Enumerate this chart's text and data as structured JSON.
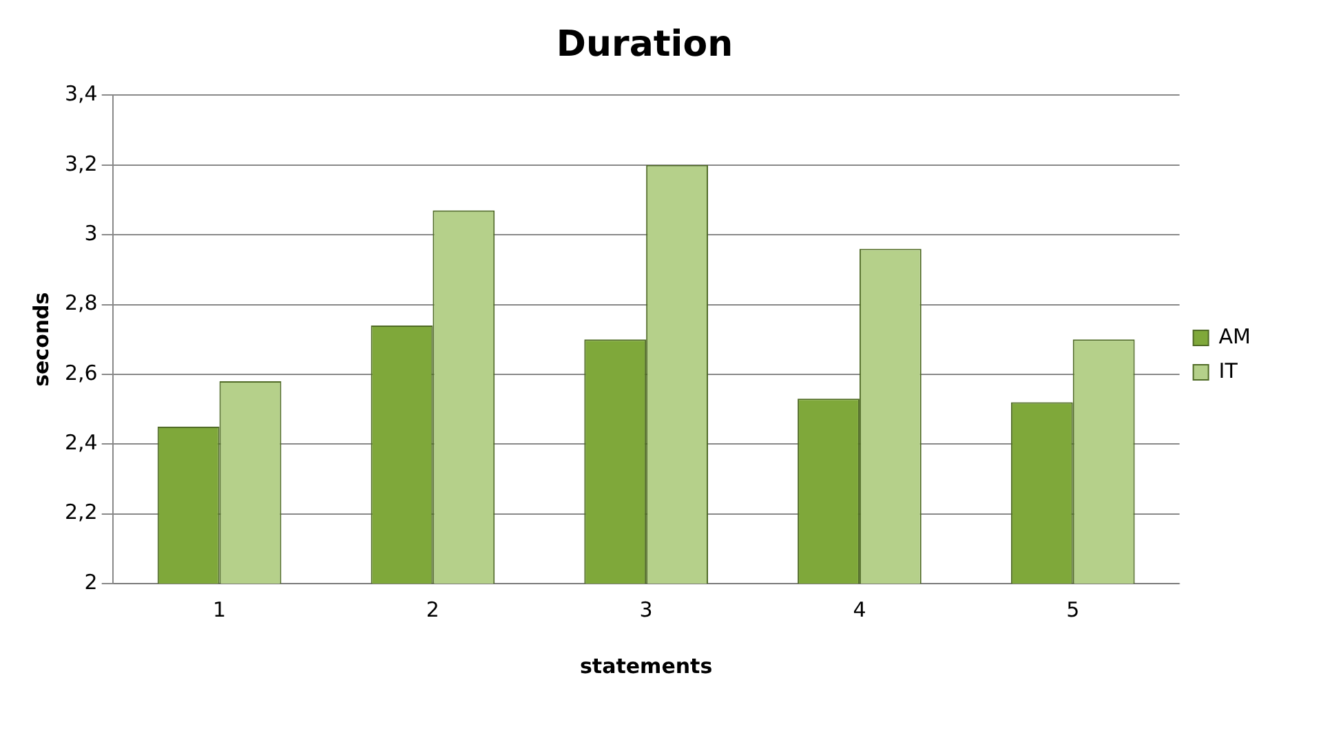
{
  "chart_data": {
    "type": "bar",
    "title": "Duration",
    "xlabel": "statements",
    "ylabel": "seconds",
    "categories": [
      "1",
      "2",
      "3",
      "4",
      "5"
    ],
    "series": [
      {
        "name": "AM",
        "color": "#7fa83a",
        "values": [
          2.45,
          2.74,
          2.7,
          2.53,
          2.52
        ]
      },
      {
        "name": "IT",
        "color": "#b5d08a",
        "values": [
          2.58,
          3.07,
          3.2,
          2.96,
          2.7
        ]
      }
    ],
    "ylim": [
      2,
      3.4
    ],
    "yticks": [
      2,
      {
        "value": 2.2,
        "label": "2,2"
      },
      {
        "value": 2.4,
        "label": "2,4"
      },
      {
        "value": 2.6,
        "label": "2,6"
      },
      {
        "value": 2.8,
        "label": "2,8"
      },
      3,
      {
        "value": 3.2,
        "label": "3,2"
      },
      {
        "value": 3.4,
        "label": "3,4"
      }
    ],
    "grid": "y",
    "legend": "right"
  }
}
